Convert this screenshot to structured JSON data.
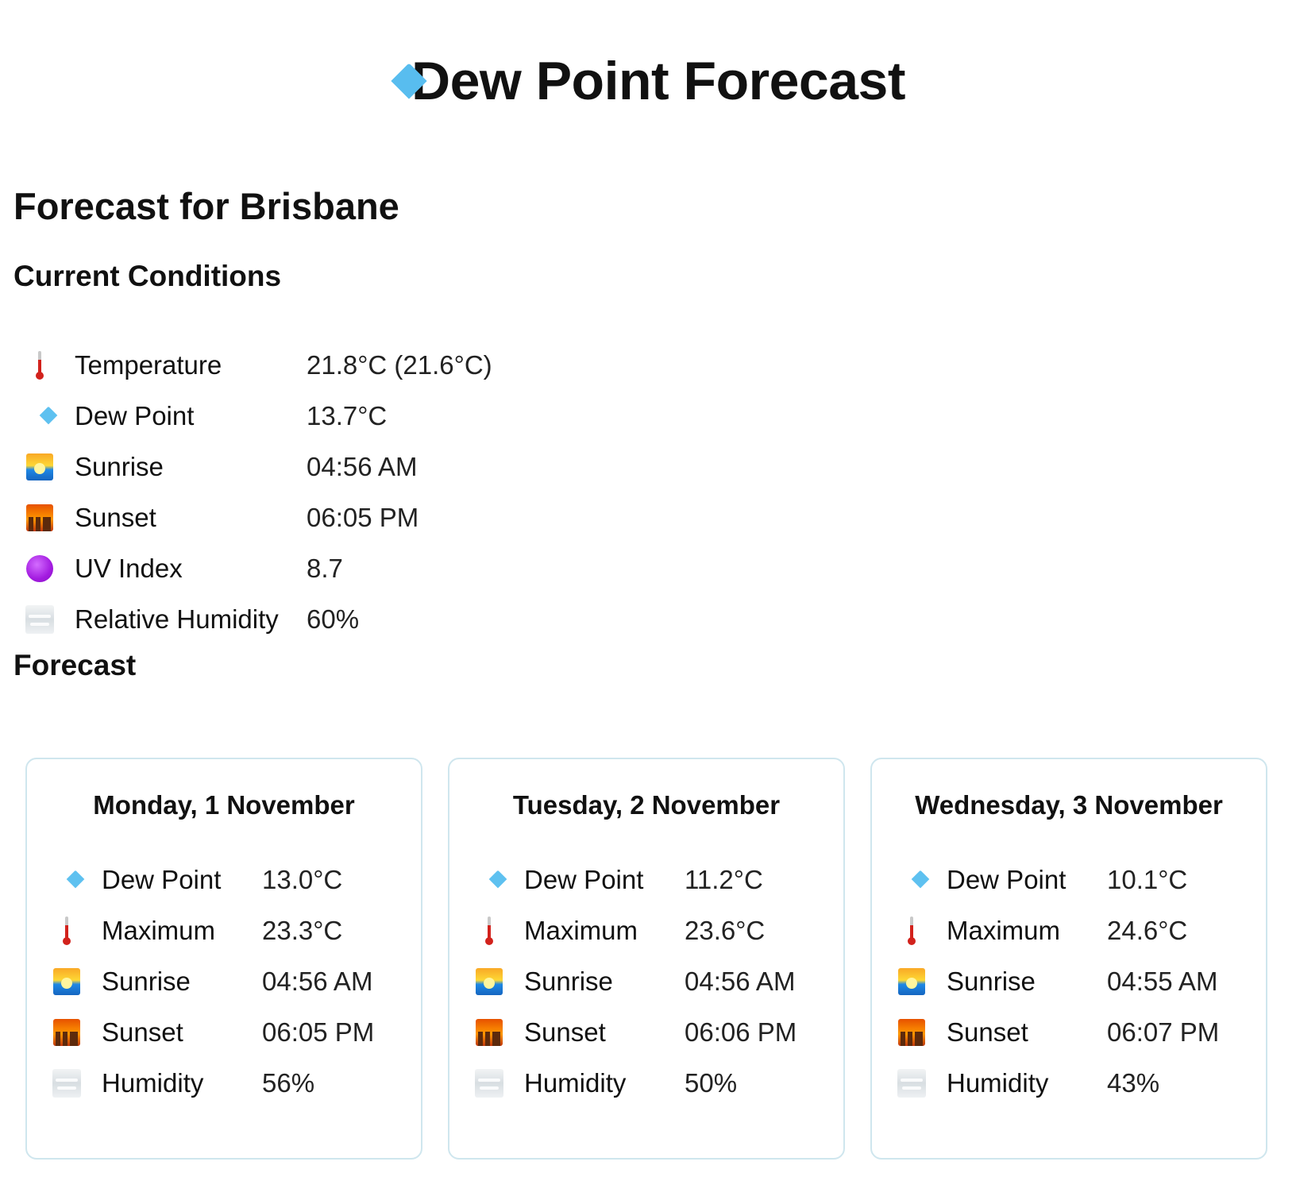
{
  "header": {
    "title": "Dew Point Forecast",
    "icon": "droplet-icon"
  },
  "location_title": "Forecast for Brisbane",
  "current": {
    "heading": "Current Conditions",
    "rows": [
      {
        "icon": "thermometer-icon",
        "label": "Temperature",
        "value": "21.8°C (21.6°C)"
      },
      {
        "icon": "droplet-icon",
        "label": "Dew Point",
        "value": "13.7°C"
      },
      {
        "icon": "sunrise-icon",
        "label": "Sunrise",
        "value": "04:56 AM"
      },
      {
        "icon": "sunset-icon",
        "label": "Sunset",
        "value": "06:05 PM"
      },
      {
        "icon": "uv-purple-circle-icon",
        "label": "UV Index",
        "value": "8.7"
      },
      {
        "icon": "fog-icon",
        "label": "Relative Humidity",
        "value": "60%"
      }
    ]
  },
  "forecast": {
    "heading": "Forecast",
    "days": [
      {
        "date": "Monday, 1 November",
        "rows": [
          {
            "icon": "droplet-icon",
            "label": "Dew Point",
            "value": "13.0°C"
          },
          {
            "icon": "thermometer-icon",
            "label": "Maximum",
            "value": "23.3°C"
          },
          {
            "icon": "sunrise-icon",
            "label": "Sunrise",
            "value": "04:56 AM"
          },
          {
            "icon": "sunset-icon",
            "label": "Sunset",
            "value": "06:05 PM"
          },
          {
            "icon": "fog-icon",
            "label": "Humidity",
            "value": "56%"
          }
        ]
      },
      {
        "date": "Tuesday, 2 November",
        "rows": [
          {
            "icon": "droplet-icon",
            "label": "Dew Point",
            "value": "11.2°C"
          },
          {
            "icon": "thermometer-icon",
            "label": "Maximum",
            "value": "23.6°C"
          },
          {
            "icon": "sunrise-icon",
            "label": "Sunrise",
            "value": "04:56 AM"
          },
          {
            "icon": "sunset-icon",
            "label": "Sunset",
            "value": "06:06 PM"
          },
          {
            "icon": "fog-icon",
            "label": "Humidity",
            "value": "50%"
          }
        ]
      },
      {
        "date": "Wednesday, 3 November",
        "rows": [
          {
            "icon": "droplet-icon",
            "label": "Dew Point",
            "value": "10.1°C"
          },
          {
            "icon": "thermometer-icon",
            "label": "Maximum",
            "value": "24.6°C"
          },
          {
            "icon": "sunrise-icon",
            "label": "Sunrise",
            "value": "04:55 AM"
          },
          {
            "icon": "sunset-icon",
            "label": "Sunset",
            "value": "06:07 PM"
          },
          {
            "icon": "fog-icon",
            "label": "Humidity",
            "value": "43%"
          }
        ]
      }
    ]
  },
  "colors": {
    "card_border": "#cfe6ee",
    "text": "#111111"
  }
}
